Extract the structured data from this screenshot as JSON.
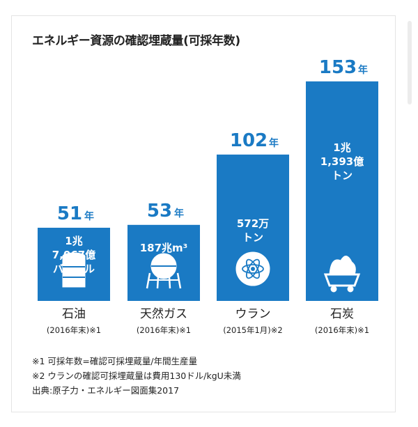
{
  "title": "エネルギー資源の確認埋蔵量(可採年数)",
  "chart_data": {
    "type": "bar",
    "title": "エネルギー資源の確認埋蔵量(可採年数)",
    "unit": "年",
    "categories": [
      "石油",
      "天然ガス",
      "ウラン",
      "石炭"
    ],
    "values": [
      51,
      53,
      102,
      153
    ],
    "bars": [
      {
        "category": "石油",
        "years": 51,
        "unit": "年",
        "reserve_lines": [
          "1兆",
          "7,067億",
          "バーレル"
        ],
        "period": "(2016年末)※1",
        "icon": "oil-drum-icon"
      },
      {
        "category": "天然ガス",
        "years": 53,
        "unit": "年",
        "reserve_lines": [
          "187兆m³"
        ],
        "period": "(2016年末)※1",
        "icon": "gas-tank-icon"
      },
      {
        "category": "ウラン",
        "years": 102,
        "unit": "年",
        "reserve_lines": [
          "572万",
          "トン"
        ],
        "period": "(2015年1月)※2",
        "icon": "atom-icon"
      },
      {
        "category": "石炭",
        "years": 153,
        "unit": "年",
        "reserve_lines": [
          "1兆",
          "1,393億",
          "トン"
        ],
        "period": "(2016年末)※1",
        "icon": "coal-cart-icon"
      }
    ],
    "colors": {
      "bar": "#1a7ac4",
      "value_text": "#1a7ac4",
      "inner_text": "#ffffff"
    }
  },
  "notes": [
    "※1 可採年数=確認可採埋蔵量/年間生産量",
    "※2 ウランの確認可採埋蔵量は費用130ドル/kgU未満"
  ],
  "source": "出典:原子力・エネルギー図面集2017"
}
